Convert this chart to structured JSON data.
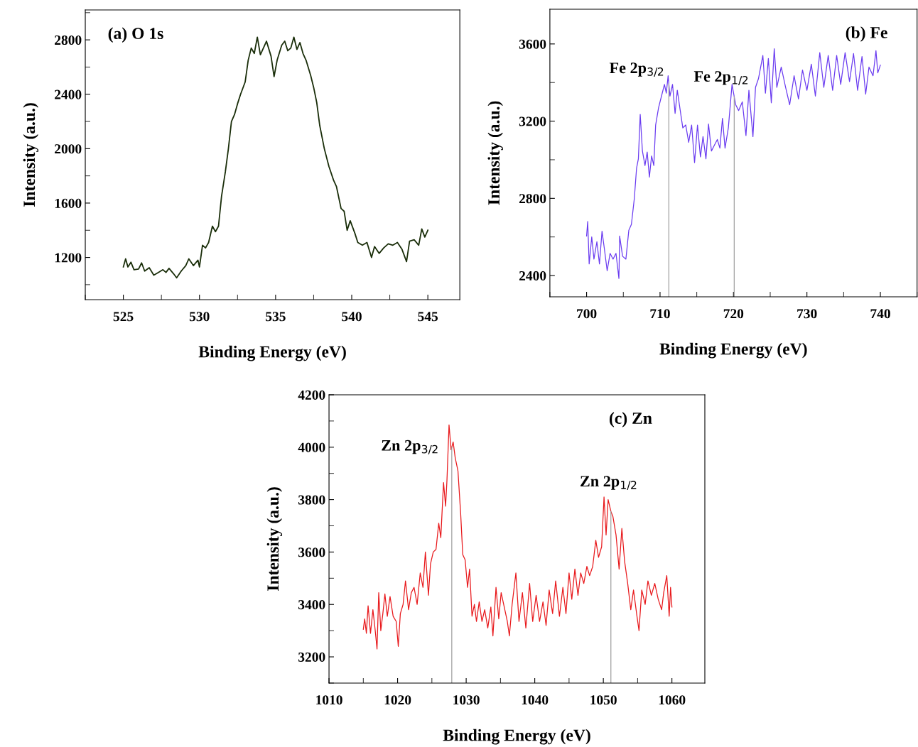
{
  "chart_data": [
    {
      "type": "line",
      "title": "(a) O 1s",
      "xlabel": "Binding Energy (eV)",
      "ylabel": "Intensity (a.u.)",
      "xlim": [
        522.5,
        547.1
      ],
      "xticks": [
        525,
        530,
        535,
        540,
        545
      ],
      "ylim": [
        890,
        3020
      ],
      "yticks": [
        1200,
        1600,
        2000,
        2400,
        2800
      ],
      "grid": false,
      "legend": false,
      "series": [
        {
          "color": "#1a2e0a",
          "x": [
            525.0,
            525.15,
            525.3,
            525.5,
            525.7,
            526.0,
            526.2,
            526.4,
            526.7,
            527.0,
            527.3,
            527.6,
            527.8,
            528.0,
            528.3,
            528.5,
            528.8,
            529.1,
            529.3,
            529.6,
            529.9,
            530.0,
            530.2,
            530.4,
            530.6,
            530.85,
            531.05,
            531.25,
            531.45,
            531.7,
            531.9,
            532.1,
            532.3,
            532.5,
            532.7,
            533.0,
            533.2,
            533.4,
            533.6,
            533.8,
            534.0,
            534.4,
            534.7,
            534.9,
            535.1,
            535.4,
            535.6,
            535.8,
            536.0,
            536.2,
            536.4,
            536.6,
            536.8,
            537.0,
            537.3,
            537.5,
            537.7,
            537.9,
            538.2,
            538.5,
            538.8,
            539.0,
            539.3,
            539.5,
            539.7,
            539.9,
            540.2,
            540.4,
            540.7,
            541.0,
            541.3,
            541.5,
            541.8,
            542.1,
            542.4,
            542.7,
            543.0,
            543.3,
            543.6,
            543.8,
            544.1,
            544.4,
            544.6,
            544.8,
            545.0
          ],
          "values": [
            1130,
            1190,
            1130,
            1165,
            1110,
            1115,
            1160,
            1100,
            1125,
            1070,
            1090,
            1110,
            1090,
            1120,
            1080,
            1050,
            1100,
            1140,
            1190,
            1140,
            1180,
            1130,
            1290,
            1270,
            1310,
            1430,
            1390,
            1430,
            1650,
            1830,
            2000,
            2200,
            2250,
            2330,
            2400,
            2490,
            2650,
            2740,
            2700,
            2820,
            2690,
            2790,
            2680,
            2530,
            2650,
            2760,
            2790,
            2720,
            2740,
            2820,
            2730,
            2780,
            2700,
            2650,
            2540,
            2450,
            2340,
            2170,
            2000,
            1870,
            1770,
            1720,
            1560,
            1540,
            1400,
            1470,
            1380,
            1310,
            1290,
            1310,
            1200,
            1280,
            1230,
            1270,
            1300,
            1290,
            1310,
            1260,
            1170,
            1320,
            1330,
            1290,
            1410,
            1350,
            1400
          ]
        }
      ]
    },
    {
      "type": "line",
      "title": "(b) Fe",
      "xlabel": "Binding Energy (eV)",
      "ylabel": "Intensity (a.u.)",
      "xlim": [
        695,
        745
      ],
      "xticks": [
        700,
        710,
        720,
        730,
        740
      ],
      "ylim": [
        2290,
        3780
      ],
      "yticks": [
        2400,
        2800,
        3200,
        3600
      ],
      "grid": false,
      "legend": false,
      "ref_lines": [
        {
          "axis": "x",
          "value": 711.2,
          "color": "#a0a0a0",
          "label": "Fe 2p$_{3/2}$"
        },
        {
          "axis": "x",
          "value": 720.1,
          "color": "#a0a0a0",
          "label": "Fe 2p$_{1/2}$"
        }
      ],
      "series": [
        {
          "color": "#6a3cf0",
          "x": [
            700.0,
            700.15,
            700.35,
            700.7,
            701.0,
            701.4,
            701.75,
            702.1,
            702.45,
            702.8,
            703.2,
            703.6,
            704.0,
            704.4,
            704.5,
            704.9,
            705.35,
            705.75,
            706.1,
            706.5,
            706.8,
            707.05,
            707.3,
            707.6,
            707.95,
            708.25,
            708.55,
            708.85,
            709.15,
            709.4,
            709.8,
            710.2,
            710.6,
            710.85,
            711.1,
            711.35,
            711.7,
            712.05,
            712.35,
            712.75,
            713.1,
            713.5,
            713.9,
            714.3,
            714.7,
            715.1,
            715.5,
            715.85,
            716.25,
            716.6,
            717.0,
            717.4,
            717.8,
            718.15,
            718.5,
            718.85,
            719.3,
            719.8,
            720.3,
            720.7,
            721.2,
            721.7,
            722.1,
            722.65,
            723.0,
            723.4,
            724.0,
            724.35,
            724.75,
            725.15,
            725.55,
            725.9,
            726.5,
            727.1,
            727.65,
            728.25,
            728.85,
            729.4,
            730.0,
            730.6,
            731.15,
            731.75,
            732.3,
            732.9,
            733.5,
            734.05,
            734.6,
            735.2,
            735.8,
            736.35,
            736.9,
            737.5,
            738.0,
            738.45,
            739.0,
            739.4,
            739.65,
            740.0
          ],
          "values": [
            2605,
            2680,
            2460,
            2600,
            2485,
            2575,
            2460,
            2630,
            2530,
            2425,
            2515,
            2485,
            2515,
            2385,
            2605,
            2500,
            2485,
            2635,
            2665,
            2800,
            2955,
            3005,
            3235,
            3045,
            2970,
            3040,
            2910,
            3020,
            2970,
            3180,
            3270,
            3330,
            3390,
            3345,
            3435,
            3330,
            3390,
            3240,
            3360,
            3255,
            3165,
            3180,
            3090,
            3180,
            2985,
            3180,
            3015,
            3120,
            3005,
            3185,
            3045,
            3075,
            3105,
            3060,
            3215,
            3060,
            3165,
            3390,
            3285,
            3255,
            3300,
            3125,
            3360,
            3120,
            3375,
            3420,
            3540,
            3345,
            3525,
            3295,
            3575,
            3375,
            3480,
            3375,
            3285,
            3435,
            3315,
            3465,
            3360,
            3495,
            3330,
            3555,
            3375,
            3540,
            3360,
            3540,
            3390,
            3555,
            3405,
            3550,
            3360,
            3535,
            3340,
            3480,
            3435,
            3565,
            3450,
            3490
          ]
        }
      ]
    },
    {
      "type": "line",
      "title": "(c) Zn",
      "xlabel": "Binding Energy (eV)",
      "ylabel": "Intensity (a.u.)",
      "xlim": [
        1010,
        1064.8
      ],
      "xticks": [
        1010,
        1020,
        1030,
        1040,
        1050,
        1060
      ],
      "ylim": [
        3100,
        4200
      ],
      "yticks": [
        3200,
        3400,
        3600,
        3800,
        4000,
        4200
      ],
      "grid": false,
      "legend": false,
      "ref_lines": [
        {
          "axis": "x",
          "value": 1027.9,
          "color": "#a0a0a0",
          "label": "Zn 2p$_{3/2}$"
        },
        {
          "axis": "x",
          "value": 1051.1,
          "color": "#a0a0a0",
          "label": "Zn 2p$_{1/2}$"
        }
      ],
      "series": [
        {
          "color": "#e8191c",
          "x": [
            1015.0,
            1015.2,
            1015.45,
            1015.7,
            1016.05,
            1016.4,
            1016.7,
            1017.0,
            1017.25,
            1017.55,
            1017.85,
            1018.15,
            1018.5,
            1018.9,
            1019.35,
            1019.8,
            1020.1,
            1020.4,
            1020.8,
            1021.15,
            1021.6,
            1022.0,
            1022.4,
            1022.85,
            1023.3,
            1023.7,
            1024.05,
            1024.5,
            1024.8,
            1025.2,
            1025.6,
            1026.0,
            1026.3,
            1026.7,
            1027.0,
            1027.2,
            1027.5,
            1027.8,
            1028.1,
            1028.4,
            1028.8,
            1029.2,
            1029.5,
            1029.85,
            1030.2,
            1030.5,
            1030.85,
            1031.2,
            1031.5,
            1031.9,
            1032.3,
            1032.7,
            1033.15,
            1033.6,
            1033.9,
            1034.35,
            1034.75,
            1035.1,
            1035.55,
            1036.0,
            1036.3,
            1036.7,
            1037.25,
            1037.7,
            1038.2,
            1038.7,
            1039.25,
            1039.7,
            1040.2,
            1040.7,
            1041.2,
            1041.65,
            1042.1,
            1042.6,
            1043.05,
            1043.6,
            1044.1,
            1044.55,
            1045.0,
            1045.4,
            1045.85,
            1046.3,
            1046.7,
            1047.15,
            1047.6,
            1048.0,
            1048.45,
            1048.9,
            1049.3,
            1049.75,
            1050.1,
            1050.4,
            1050.7,
            1051.1,
            1051.4,
            1051.85,
            1052.3,
            1052.7,
            1053.1,
            1053.55,
            1054.0,
            1054.4,
            1054.85,
            1055.2,
            1055.6,
            1056.1,
            1056.5,
            1057.0,
            1057.5,
            1058.0,
            1058.5,
            1058.8,
            1059.25,
            1059.6,
            1059.8,
            1060.0
          ],
          "values": [
            3305,
            3345,
            3290,
            3395,
            3290,
            3380,
            3310,
            3230,
            3445,
            3300,
            3365,
            3440,
            3355,
            3430,
            3355,
            3335,
            3240,
            3365,
            3400,
            3490,
            3380,
            3445,
            3465,
            3400,
            3520,
            3465,
            3600,
            3435,
            3555,
            3600,
            3610,
            3710,
            3655,
            3865,
            3775,
            3875,
            4085,
            3990,
            4020,
            3960,
            3910,
            3745,
            3590,
            3570,
            3465,
            3535,
            3355,
            3400,
            3335,
            3410,
            3335,
            3380,
            3310,
            3390,
            3280,
            3465,
            3345,
            3445,
            3390,
            3335,
            3280,
            3400,
            3520,
            3335,
            3445,
            3310,
            3480,
            3335,
            3435,
            3335,
            3410,
            3320,
            3455,
            3365,
            3490,
            3355,
            3465,
            3365,
            3520,
            3420,
            3535,
            3435,
            3520,
            3480,
            3545,
            3510,
            3545,
            3645,
            3580,
            3620,
            3810,
            3665,
            3800,
            3755,
            3735,
            3665,
            3535,
            3690,
            3565,
            3480,
            3380,
            3455,
            3365,
            3300,
            3455,
            3400,
            3490,
            3435,
            3480,
            3420,
            3380,
            3445,
            3510,
            3355,
            3465,
            3390
          ]
        }
      ]
    }
  ]
}
